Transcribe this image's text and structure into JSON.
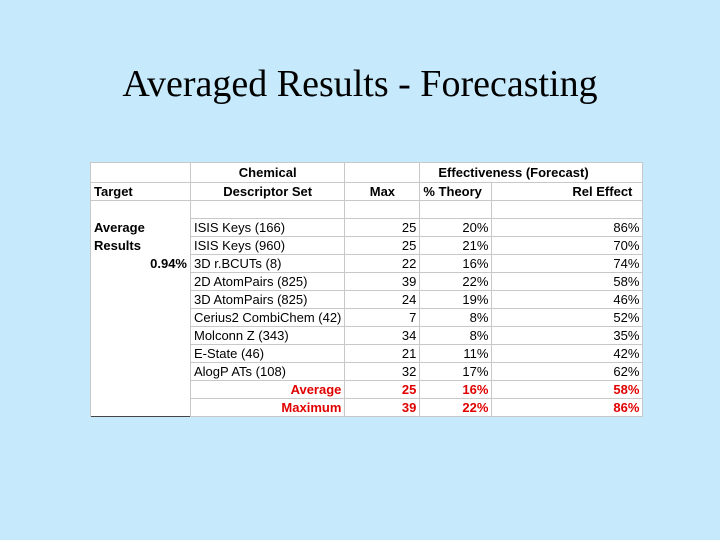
{
  "title": "Averaged Results - Forecasting",
  "table": {
    "header": {
      "chemical": "Chemical",
      "effectiveness": "Effectiveness (Forecast)",
      "columns": [
        "Target",
        "Descriptor Set",
        "Max",
        "% Theory",
        "Rel Effect"
      ]
    },
    "target": [
      "Average",
      "Results",
      "0.94%"
    ],
    "rows": [
      [
        "ISIS Keys (166)",
        "25",
        "20%",
        "86%"
      ],
      [
        "ISIS Keys (960)",
        "25",
        "21%",
        "70%"
      ],
      [
        "3D r.BCUTs (8)",
        "22",
        "16%",
        "74%"
      ],
      [
        "2D AtomPairs (825)",
        "39",
        "22%",
        "58%"
      ],
      [
        "3D AtomPairs (825)",
        "24",
        "19%",
        "46%"
      ],
      [
        "Cerius2 CombiChem (42)",
        "7",
        "8%",
        "52%"
      ],
      [
        "Molconn Z (343)",
        "34",
        "8%",
        "35%"
      ],
      [
        "E-State (46)",
        "21",
        "11%",
        "42%"
      ],
      [
        "AlogP ATs (108)",
        "32",
        "17%",
        "62%"
      ]
    ],
    "summary": [
      [
        "Average",
        "25",
        "16%",
        "58%"
      ],
      [
        "Maximum",
        "39",
        "22%",
        "86%"
      ]
    ]
  }
}
